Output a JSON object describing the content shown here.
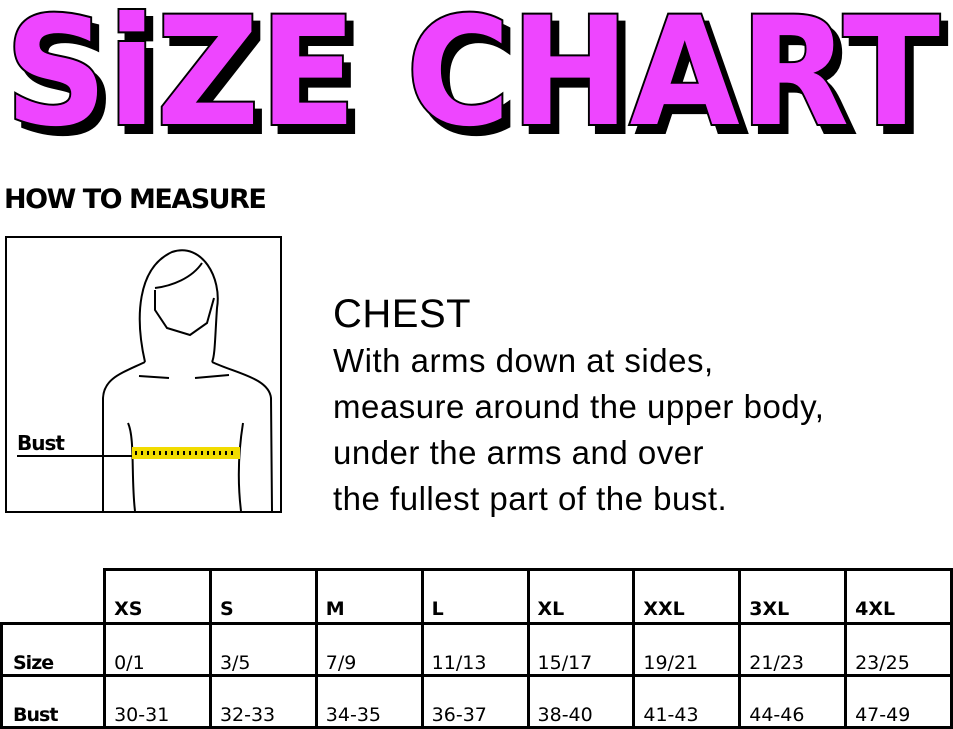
{
  "title": "SiZE CHART",
  "title_color": "#EE44FF",
  "subheading": "HOW TO MEASURE",
  "figure": {
    "label": "Bust",
    "tape_color": "#F2DC00"
  },
  "instructions": {
    "heading": "CHEST",
    "lines": [
      "With arms down at sides,",
      "measure around the upper body,",
      "under the arms and over",
      "the fullest part of the bust."
    ]
  },
  "table": {
    "columns": [
      "XS",
      "S",
      "M",
      "L",
      "XL",
      "XXL",
      "3XL",
      "4XL"
    ],
    "rows": [
      {
        "label": "Size",
        "values": [
          "0/1",
          "3/5",
          "7/9",
          "11/13",
          "15/17",
          "19/21",
          "21/23",
          "23/25"
        ]
      },
      {
        "label": "Bust",
        "values": [
          "30-31",
          "32-33",
          "34-35",
          "36-37",
          "38-40",
          "41-43",
          "44-46",
          "47-49"
        ]
      }
    ]
  }
}
